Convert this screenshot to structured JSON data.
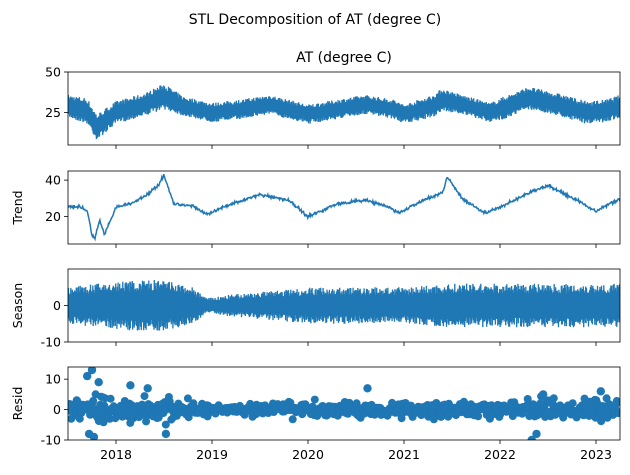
{
  "figure": {
    "suptitle": "STL Decomposition of AT (degree C)"
  },
  "chart_data": [
    {
      "type": "line",
      "title": "AT (degree C)",
      "ylabel": "",
      "ylim": [
        5,
        50
      ],
      "yticks": [
        25,
        50
      ],
      "xlim": [
        2017.5,
        2023.25
      ],
      "xticks": [
        "2018",
        "2019",
        "2020",
        "2021",
        "2022",
        "2023"
      ],
      "series": [
        {
          "values_x": [
            2017.5,
            2017.7,
            2017.8,
            2018.0,
            2018.3,
            2018.5,
            2018.7,
            2019.0,
            2019.3,
            2019.6,
            2020.0,
            2020.3,
            2020.6,
            2020.9,
            2021.0,
            2021.3,
            2021.4,
            2021.6,
            2021.9,
            2022.0,
            2022.3,
            2022.6,
            2022.9,
            2023.1,
            2023.25
          ],
          "values_y": [
            29,
            26,
            16,
            25,
            30,
            35,
            29,
            25,
            27,
            30,
            24,
            27,
            30,
            27,
            24,
            29,
            33,
            30,
            25,
            27,
            34,
            30,
            25,
            26,
            29
          ],
          "band": [
            7,
            8,
            8,
            7,
            7,
            8,
            6,
            6,
            6,
            6,
            6,
            6,
            6,
            6,
            6,
            7,
            7,
            6,
            6,
            7,
            7,
            7,
            7,
            7,
            7
          ]
        }
      ],
      "color": "#1f77b4",
      "grid": false
    },
    {
      "type": "line",
      "ylabel": "Trend",
      "ylim": [
        5,
        45
      ],
      "yticks": [
        20,
        40
      ],
      "xlim": [
        2017.5,
        2023.25
      ],
      "xticks": [
        "2018",
        "2019",
        "2020",
        "2021",
        "2022",
        "2023"
      ],
      "series": [
        {
          "values_x": [
            2017.5,
            2017.65,
            2017.7,
            2017.75,
            2017.78,
            2017.83,
            2017.88,
            2018.0,
            2018.2,
            2018.35,
            2018.45,
            2018.5,
            2018.6,
            2018.8,
            2018.95,
            2019.2,
            2019.5,
            2019.8,
            2020.0,
            2020.3,
            2020.6,
            2020.85,
            2020.95,
            2021.2,
            2021.4,
            2021.45,
            2021.6,
            2021.85,
            2022.0,
            2022.3,
            2022.5,
            2022.8,
            2023.0,
            2023.25
          ],
          "values_y": [
            26,
            25,
            23,
            10,
            8,
            18,
            10,
            25,
            28,
            33,
            38,
            43,
            27,
            26,
            21,
            27,
            32,
            29,
            20,
            27,
            29,
            25,
            22,
            29,
            33,
            42,
            30,
            22,
            25,
            33,
            37,
            29,
            23,
            30
          ]
        }
      ],
      "color": "#1f77b4",
      "grid": false
    },
    {
      "type": "line",
      "ylabel": "Season",
      "ylim": [
        -10,
        10
      ],
      "yticks": [
        -10,
        0
      ],
      "xlim": [
        2017.5,
        2023.25
      ],
      "xticks": [
        "2018",
        "2019",
        "2020",
        "2021",
        "2022",
        "2023"
      ],
      "series": [
        {
          "values_x": [
            2017.5,
            2017.8,
            2018.2,
            2018.5,
            2018.8,
            2018.95,
            2019.2,
            2019.6,
            2020.0,
            2020.5,
            2021.0,
            2021.5,
            2022.0,
            2022.5,
            2023.0,
            2023.25
          ],
          "values_y": [
            0,
            0,
            0,
            0,
            0,
            0,
            0,
            0,
            0,
            0,
            0,
            0,
            0,
            0,
            0,
            0
          ],
          "band": [
            5,
            6,
            7,
            7,
            5,
            2,
            3,
            4,
            5,
            5,
            5,
            6,
            6,
            6,
            6,
            6
          ]
        }
      ],
      "color": "#1f77b4",
      "grid": false
    },
    {
      "type": "scatter",
      "ylabel": "Resid",
      "ylim": [
        -10,
        14
      ],
      "yticks": [
        -10,
        0,
        10
      ],
      "xlim": [
        2017.5,
        2023.25
      ],
      "xticks": [
        "2018",
        "2019",
        "2020",
        "2021",
        "2022",
        "2023"
      ],
      "series": [
        {
          "band_x": [
            2017.5,
            2017.8,
            2018.2,
            2018.5,
            2018.9,
            2019.3,
            2019.7,
            2020.1,
            2020.6,
            2021.0,
            2021.5,
            2022.0,
            2022.4,
            2022.8,
            2023.25
          ],
          "band": [
            4,
            6,
            5,
            5,
            3,
            2,
            3,
            3,
            3,
            3,
            3,
            3,
            5,
            4,
            5
          ],
          "outliers_x": [
            2017.7,
            2017.72,
            2017.75,
            2017.77,
            2017.82,
            2018.15,
            2018.33,
            2018.52,
            2020.62,
            2022.33,
            2022.38,
            2022.45,
            2023.05
          ],
          "outliers_y": [
            11,
            -8,
            13,
            -9,
            9,
            8,
            7,
            -8,
            7,
            -10,
            -8,
            5,
            6
          ]
        }
      ],
      "color": "#1f77b4",
      "grid": false
    }
  ]
}
